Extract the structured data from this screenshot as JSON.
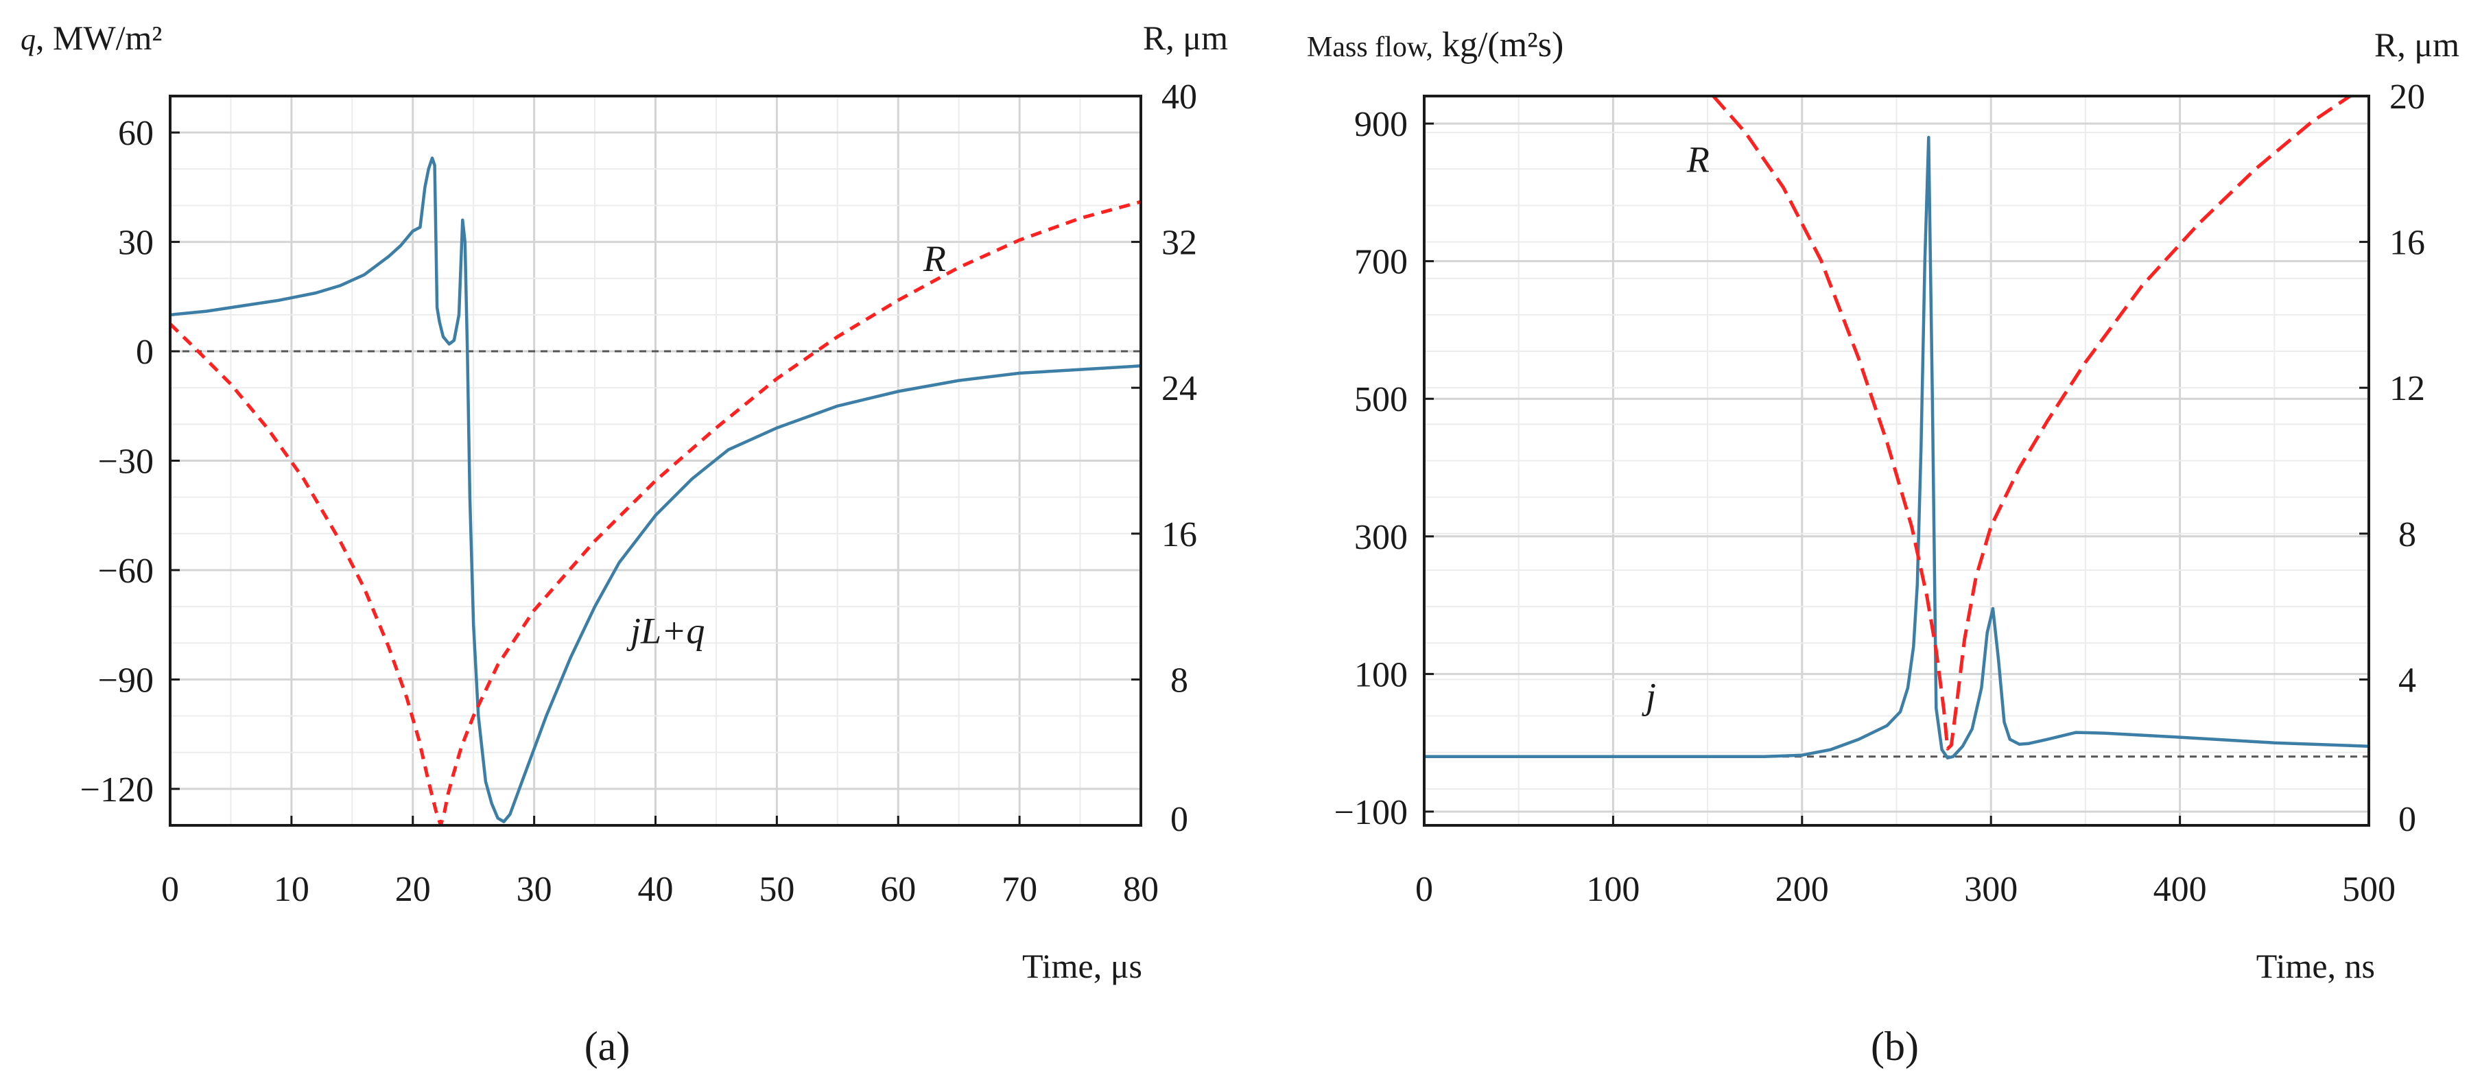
{
  "chart_data": [
    {
      "type": "line",
      "panel_label": "(a)",
      "xlabel": "Time, μs",
      "ylabel_left": "q, MW/m²",
      "ylabel_right": "R, μm",
      "xlim": [
        0,
        80
      ],
      "ylim_left": [
        -130,
        70
      ],
      "ylim_right": [
        0,
        40
      ],
      "x_ticks": [
        0,
        10,
        20,
        30,
        40,
        50,
        60,
        70,
        80
      ],
      "y_left_ticks": [
        60,
        30,
        0,
        -30,
        -60,
        -90,
        -120
      ],
      "y_left_tick_labels": [
        "60",
        "30",
        "0",
        "−30",
        "−60",
        "−90",
        "−120"
      ],
      "y_right_ticks": [
        40,
        32,
        24,
        16,
        8,
        0
      ],
      "zero_line": "dashed at q = 0",
      "grid": true,
      "series": [
        {
          "name": "jL+q",
          "axis": "left",
          "style": "solid",
          "color": "#3d7ea6",
          "x": [
            0,
            3,
            6,
            9,
            12,
            14,
            16,
            18,
            19,
            20,
            20.6,
            21,
            21.3,
            21.6,
            21.8,
            22,
            22.2,
            22.5,
            23,
            23.4,
            23.8,
            24.1,
            24.3,
            24.5,
            24.7,
            25,
            25.4,
            26,
            26.5,
            27,
            27.5,
            28,
            29,
            31,
            33,
            35,
            37,
            40,
            43,
            46,
            50,
            55,
            60,
            65,
            70,
            75,
            80
          ],
          "y": [
            10,
            11,
            12.5,
            14,
            16,
            18,
            21,
            26,
            29,
            33,
            34,
            45,
            50,
            53,
            51,
            12,
            8,
            4,
            2,
            3,
            10,
            36,
            30,
            0,
            -40,
            -75,
            -100,
            -118,
            -124,
            -128,
            -129,
            -127,
            -118,
            -100,
            -84,
            -70,
            -58,
            -45,
            -35,
            -27,
            -21,
            -15,
            -11,
            -8,
            -6,
            -5,
            -4
          ]
        },
        {
          "name": "R",
          "axis": "right",
          "style": "dashed",
          "color": "#ff2020",
          "x": [
            0,
            2,
            5,
            8,
            11,
            14,
            16,
            18,
            19.5,
            20.5,
            21.3,
            21.9,
            22.3,
            22.6,
            22.9,
            23.3,
            24,
            25,
            27,
            30,
            35,
            40,
            45,
            50,
            55,
            60,
            65,
            70,
            75,
            80
          ],
          "y": [
            27.5,
            26.2,
            24.2,
            21.8,
            19,
            15.6,
            13,
            9.8,
            7,
            4.7,
            2.4,
            0.8,
            0,
            0.7,
            1.7,
            2.7,
            4.3,
            6,
            8.8,
            11.8,
            15.6,
            18.9,
            21.8,
            24.5,
            26.8,
            28.8,
            30.6,
            32.1,
            33.3,
            34.2
          ]
        }
      ],
      "annotations": [
        {
          "text": "R",
          "x": 63,
          "y_left": 22
        },
        {
          "text": "jL+q",
          "x": 41,
          "y_left": -80
        }
      ]
    },
    {
      "type": "line",
      "panel_label": "(b)",
      "xlabel": "Time, ns",
      "ylabel_left": "Mass flow, kg/(m²s)",
      "ylabel_right": "R, μm",
      "xlim": [
        0,
        500
      ],
      "ylim_left": [
        -120,
        940
      ],
      "ylim_right": [
        0,
        20
      ],
      "x_ticks": [
        0,
        100,
        200,
        300,
        400,
        500
      ],
      "y_left_ticks": [
        900,
        700,
        500,
        300,
        100,
        -100
      ],
      "y_left_tick_labels": [
        "900",
        "700",
        "500",
        "300",
        "100",
        "−100"
      ],
      "y_right_ticks": [
        20,
        16,
        12,
        8,
        4,
        0
      ],
      "zero_line": "dashed at mass flow = -20",
      "grid": true,
      "series": [
        {
          "name": "j",
          "axis": "left",
          "style": "solid",
          "color": "#3d7ea6",
          "x": [
            0,
            100,
            180,
            200,
            215,
            230,
            245,
            252,
            256,
            259,
            261,
            263,
            265,
            267,
            269,
            271,
            274,
            277,
            280,
            285,
            290,
            295,
            298,
            301,
            304,
            307,
            310,
            315,
            320,
            330,
            345,
            360,
            400,
            450,
            500
          ],
          "y": [
            -20,
            -20,
            -20,
            -18,
            -10,
            5,
            25,
            45,
            80,
            140,
            230,
            430,
            700,
            880,
            500,
            50,
            -10,
            -22,
            -20,
            -5,
            20,
            80,
            160,
            195,
            120,
            30,
            5,
            -2,
            -1,
            5,
            15,
            14,
            8,
            0,
            -5
          ]
        },
        {
          "name": "R",
          "axis": "right",
          "style": "dashed",
          "color": "#ff2020",
          "x": [
            153,
            170,
            190,
            210,
            230,
            245,
            258,
            266,
            271,
            275,
            277,
            279,
            282,
            286,
            292,
            300,
            315,
            330,
            350,
            380,
            410,
            440,
            470,
            490
          ],
          "y": [
            20,
            19,
            17.5,
            15.5,
            12.8,
            10.5,
            8.2,
            6.3,
            4.8,
            3.2,
            2.1,
            2.2,
            3.4,
            5.1,
            6.8,
            8.2,
            9.8,
            11.1,
            12.7,
            14.8,
            16.5,
            18,
            19.3,
            20
          ]
        }
      ],
      "annotations": [
        {
          "text": "R",
          "x": 145,
          "y_left": 830
        },
        {
          "text": "j",
          "x": 120,
          "y_left": 50
        }
      ]
    }
  ]
}
